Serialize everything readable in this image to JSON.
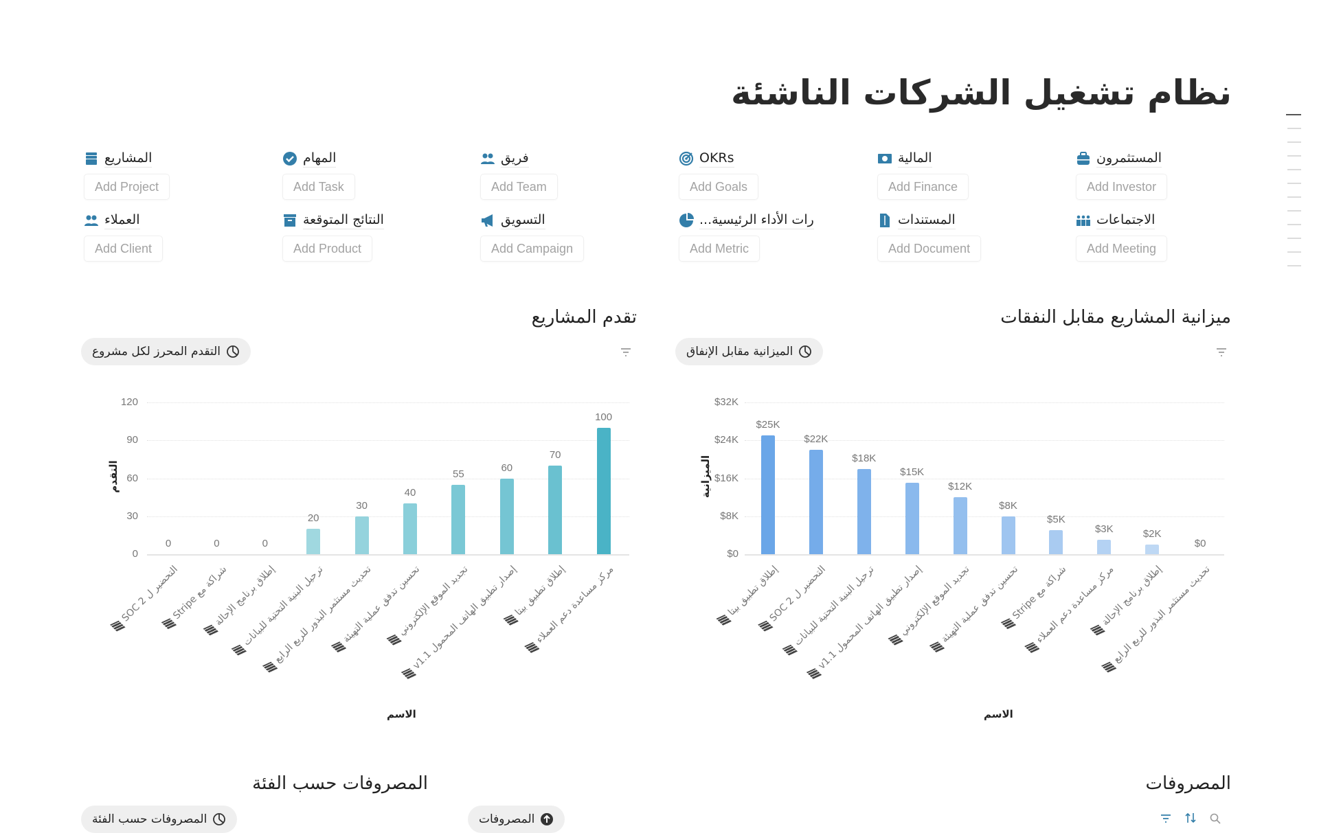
{
  "title": "نظام تشغيل الشركات الناشئة",
  "accent": "#337ea9",
  "nav": [
    {
      "label": "المشاريع",
      "button": "Add Project",
      "icon": "archive-stack-icon"
    },
    {
      "label": "المهام",
      "button": "Add Task",
      "icon": "check-circle-icon"
    },
    {
      "label": "فريق",
      "button": "Add Team",
      "icon": "people-icon"
    },
    {
      "label": "OKRs",
      "button": "Add Goals",
      "icon": "target-icon"
    },
    {
      "label": "المالية",
      "button": "Add Finance",
      "icon": "money-icon"
    },
    {
      "label": "المستثمرون",
      "button": "Add Investor",
      "icon": "briefcase-icon"
    },
    {
      "label": "العملاء",
      "button": "Add Client",
      "icon": "people-icon"
    },
    {
      "label": "النتائج المتوقعة",
      "button": "Add Product",
      "icon": "archive-box-icon"
    },
    {
      "label": "التسويق",
      "button": "Add Campaign",
      "icon": "megaphone-icon"
    },
    {
      "label": "رات الأداء الرئيسية...",
      "button": "Add Metric",
      "icon": "pie-chart-icon"
    },
    {
      "label": "المستندات",
      "button": "Add Document",
      "icon": "document-icon"
    },
    {
      "label": "الاجتماعات",
      "button": "Add Meeting",
      "icon": "meeting-icon"
    }
  ],
  "sections": {
    "progress": {
      "title": "تقدم المشاريع",
      "view": "التقدم المحرز لكل مشروع"
    },
    "budget": {
      "title": "ميزانية المشاريع مقابل النفقات",
      "view": "الميزانية مقابل الإنفاق"
    },
    "expenses": {
      "title": "المصروفات",
      "view": "المصروفات"
    },
    "by_category": {
      "title": "المصروفات حسب الفئة",
      "view": "المصروفات حسب الفئة"
    }
  },
  "chart_data": [
    {
      "type": "bar",
      "title": "تقدم المشاريع",
      "xlabel": "الاسم",
      "ylabel": "التقدم",
      "ylim": [
        0,
        120
      ],
      "yticks": [
        "0",
        "30",
        "60",
        "90",
        "120"
      ],
      "categories": [
        "التحضير ل SOC 2",
        "شراكة مع Stripe",
        "إطلاق برنامج الإحالة",
        "ترحيل البنية التحتية للبيانات",
        "تحديث مستثمر البذور للربع الرابع",
        "تحسين تدفق عملية التهيئة",
        "تجديد الموقع الإلكتروني",
        "إصدار تطبيق الهاتف المحمول v1.1",
        "إطلاق تطبيق بيتا",
        "مركز مساعدة دعم العملاء"
      ],
      "values": [
        0,
        0,
        0,
        20,
        30,
        40,
        55,
        60,
        70,
        100
      ],
      "labels": [
        "0",
        "0",
        "0",
        "20",
        "30",
        "40",
        "55",
        "60",
        "70",
        "100"
      ],
      "colors": [
        "#b5e1e7",
        "#4ab3c6"
      ],
      "grid": true
    },
    {
      "type": "bar",
      "title": "ميزانية المشاريع مقابل النفقات",
      "xlabel": "الاسم",
      "ylabel": "الميزانية",
      "ylim": [
        0,
        32000
      ],
      "yticks": [
        "$0",
        "$8K",
        "$16K",
        "$24K",
        "$32K"
      ],
      "categories": [
        "إطلاق تطبيق بيتا",
        "التحضير ل SOC 2",
        "ترحيل البنية التحتية للبيانات",
        "إصدار تطبيق الهاتف المحمول v1.1",
        "تجديد الموقع الإلكتروني",
        "تحسين تدفق عملية التهيئة",
        "شراكة مع Stripe",
        "مركز مساعدة دعم العملاء",
        "إطلاق برنامج الإحالة",
        "تحديث مستثمر البذور للربع الرابع"
      ],
      "values": [
        25000,
        22000,
        18000,
        15000,
        12000,
        8000,
        5000,
        3000,
        2000,
        0
      ],
      "labels": [
        "$25K",
        "$22K",
        "$18K",
        "$15K",
        "$12K",
        "$8K",
        "$5K",
        "$3K",
        "$2K",
        "$0"
      ],
      "colors": [
        "#6aa6e8",
        "#c9def6"
      ],
      "grid": true
    }
  ]
}
